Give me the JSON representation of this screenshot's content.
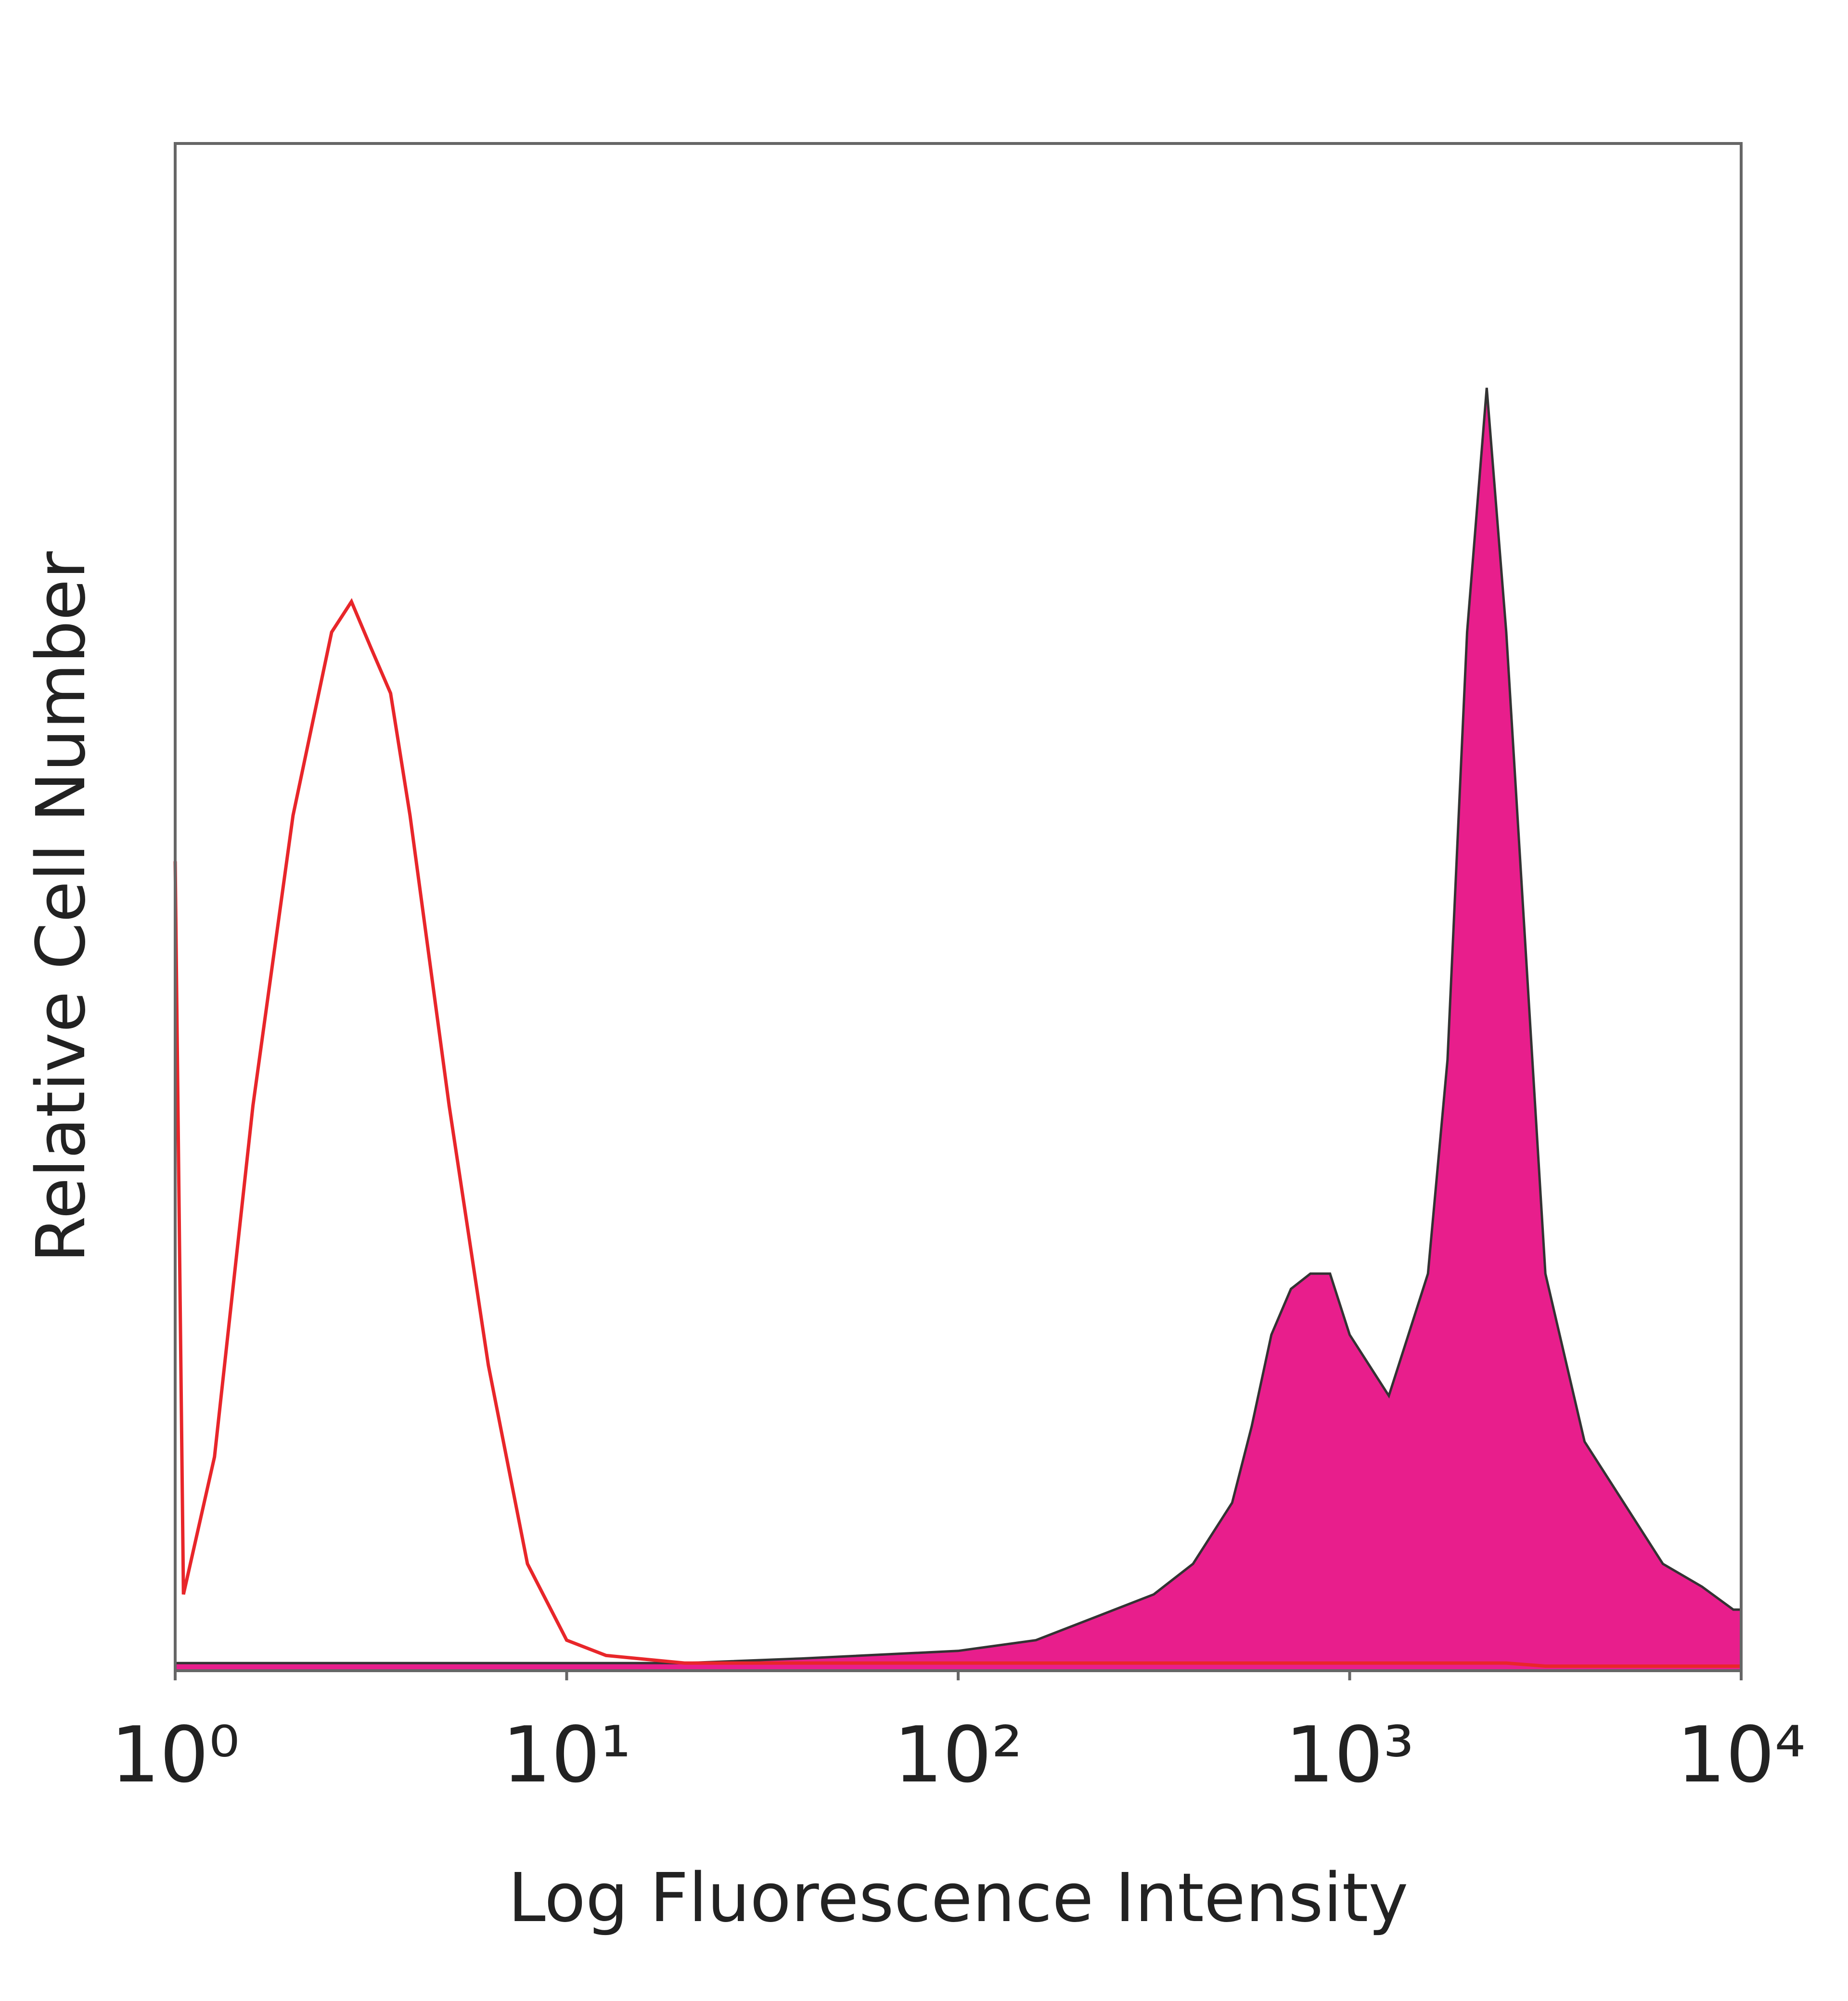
{
  "chart_data": {
    "type": "histogram-overlay",
    "x_label": "Log Fluorescence Intensity",
    "y_label": "Relative Cell Number",
    "x_scale": "log",
    "xlim": [
      1,
      10000
    ],
    "xticks": [
      {
        "value": 1,
        "label": "10⁰"
      },
      {
        "value": 10,
        "label": "10¹"
      },
      {
        "value": 100,
        "label": "10²"
      },
      {
        "value": 1000,
        "label": "10³"
      },
      {
        "value": 10000,
        "label": "10⁴"
      }
    ],
    "ylim": [
      0,
      100
    ],
    "x": [
      1,
      1.05,
      1.26,
      1.58,
      2,
      2.51,
      2.82,
      3.16,
      3.55,
      3.98,
      5.01,
      6.31,
      7.94,
      10,
      12.6,
      20,
      39.8,
      100,
      158,
      251,
      316,
      398,
      501,
      562,
      631,
      708,
      794,
      891,
      1000,
      1122,
      1259,
      1413,
      1585,
      1778,
      1995,
      2239,
      2512,
      3162,
      3981,
      5012,
      6310,
      7943,
      9550,
      10000
    ],
    "series": [
      {
        "color": "#e8262a",
        "fill": false,
        "values": [
          53,
          5,
          14,
          37,
          56,
          68,
          70,
          67,
          64,
          56,
          37,
          20,
          7,
          2,
          1,
          0.5,
          0.5,
          0.5,
          0.5,
          0.5,
          0.5,
          0.5,
          0.5,
          0.5,
          0.5,
          0.5,
          0.5,
          0.5,
          0.5,
          0.5,
          0.5,
          0.5,
          0.5,
          0.5,
          0.5,
          0.5,
          0.5,
          0.3,
          0.3,
          0.3,
          0.3,
          0.3,
          0.3,
          0.3
        ]
      },
      {
        "color": "#e81e8c",
        "fill": true,
        "values": [
          0.5,
          0.5,
          0.5,
          0.5,
          0.5,
          0.5,
          0.5,
          0.5,
          0.5,
          0.5,
          0.5,
          0.5,
          0.5,
          0.5,
          0.5,
          0.5,
          0.8,
          1.3,
          2,
          4,
          5,
          7,
          11,
          16,
          22,
          25,
          26,
          26,
          22,
          20,
          18,
          22,
          26,
          40,
          68,
          84,
          68,
          26,
          15,
          11,
          7,
          5.5,
          4,
          4
        ]
      }
    ]
  }
}
